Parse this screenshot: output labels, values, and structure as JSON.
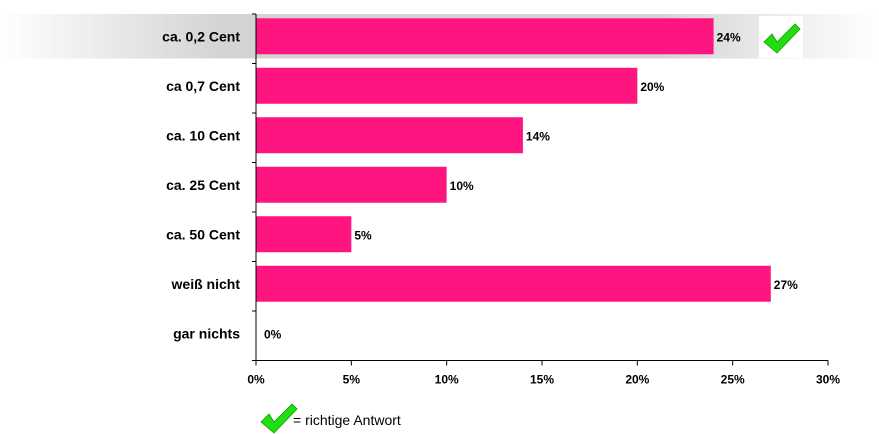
{
  "chart_data": {
    "type": "bar",
    "orientation": "horizontal",
    "categories": [
      "ca. 0,2 Cent",
      "ca 0,7 Cent",
      "ca. 10 Cent",
      "ca. 25 Cent",
      "ca. 50 Cent",
      "weiß nicht",
      "gar nichts"
    ],
    "values": [
      24,
      20,
      14,
      10,
      5,
      27,
      0
    ],
    "value_labels": [
      "24%",
      "20%",
      "14%",
      "10%",
      "5%",
      "27%",
      "0%"
    ],
    "xlim": [
      0,
      30
    ],
    "xticks": [
      0,
      5,
      10,
      15,
      20,
      25,
      30
    ],
    "xtick_labels": [
      "0%",
      "5%",
      "10%",
      "15%",
      "20%",
      "25%",
      "30%"
    ],
    "bar_color": "#ff1580",
    "highlight_color": "#d8d8d8",
    "check_color": "#22dd11",
    "correct_index": 0,
    "title": "",
    "xlabel": "",
    "ylabel": ""
  },
  "legend": {
    "icon": "checkmark-icon",
    "text": "= richtige Antwort"
  }
}
